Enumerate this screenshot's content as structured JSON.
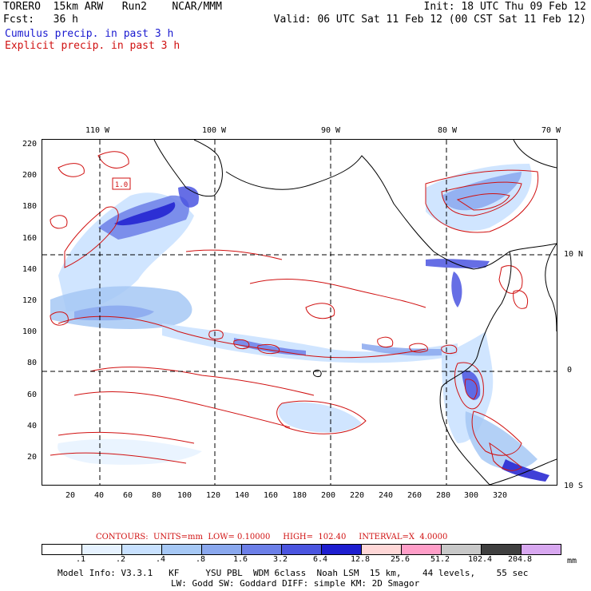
{
  "header": {
    "line1_left": "TORERO  15km ARW   Run2    NCAR/MMM",
    "line1_right": "Init: 18 UTC Thu 09 Feb 12",
    "line2_left": "Fcst:   36 h",
    "line2_right": "Valid: 06 UTC Sat 11 Feb 12 (00 CST Sat 11 Feb 12)",
    "cumulus_label": "Cumulus precip. in past 3 h",
    "explicit_label": "Explicit precip. in past 3 h"
  },
  "map": {
    "lon_labels": [
      "110 W",
      "100 W",
      "90 W",
      "80 W",
      "70 W"
    ],
    "lat_labels": [
      "10 N",
      "0",
      "10 S"
    ],
    "y_ticks": [
      "220",
      "200",
      "180",
      "160",
      "140",
      "120",
      "100",
      "80",
      "60",
      "40",
      "20"
    ],
    "x_ticks": [
      "20",
      "40",
      "60",
      "80",
      "100",
      "120",
      "140",
      "160",
      "180",
      "200",
      "220",
      "240",
      "260",
      "280",
      "300",
      "320"
    ],
    "box_label": "1.0"
  },
  "contours": {
    "text": "CONTOURS:  UNITS=mm  LOW= 0.10000     HIGH=  102.40     INTERVAL=X  4.0000"
  },
  "colorbar": {
    "labels": [
      ".1",
      ".2",
      ".4",
      ".8",
      "1.6",
      "3.2",
      "6.4",
      "12.8",
      "25.6",
      "51.2",
      "102.4",
      "204.8"
    ],
    "unit": "mm",
    "colors": [
      "#ffffff",
      "#e6f2ff",
      "#c8e1ff",
      "#a6c8f5",
      "#8aa8ee",
      "#6c7fe8",
      "#4b55e0",
      "#1e1ed0",
      "#ffd7d7",
      "#ff9ec8",
      "#c8c8c8",
      "#404040",
      "#d8a8f0"
    ]
  },
  "footer": {
    "line1": "Model Info: V3.3.1   KF     YSU PBL  WDM 6class  Noah LSM  15 km,    44 levels,    55 sec",
    "line2": "LW: Godd SW: Goddard DIFF: simple KM: 2D Smagor"
  }
}
